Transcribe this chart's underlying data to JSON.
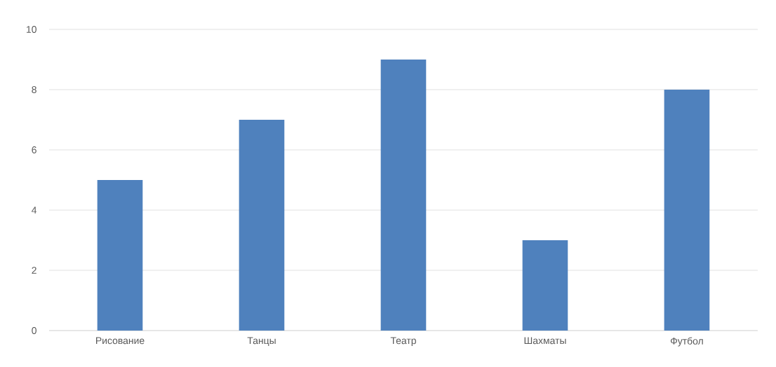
{
  "chart_data": {
    "type": "bar",
    "categories": [
      "Рисование",
      "Танцы",
      "Театр",
      "Шахматы",
      "Футбол"
    ],
    "values": [
      5,
      7,
      9,
      3,
      8
    ],
    "color": "#4f81bd",
    "ylim": [
      0,
      10
    ],
    "yticks": [
      0,
      2,
      4,
      6,
      8,
      10
    ],
    "grid": "y"
  }
}
